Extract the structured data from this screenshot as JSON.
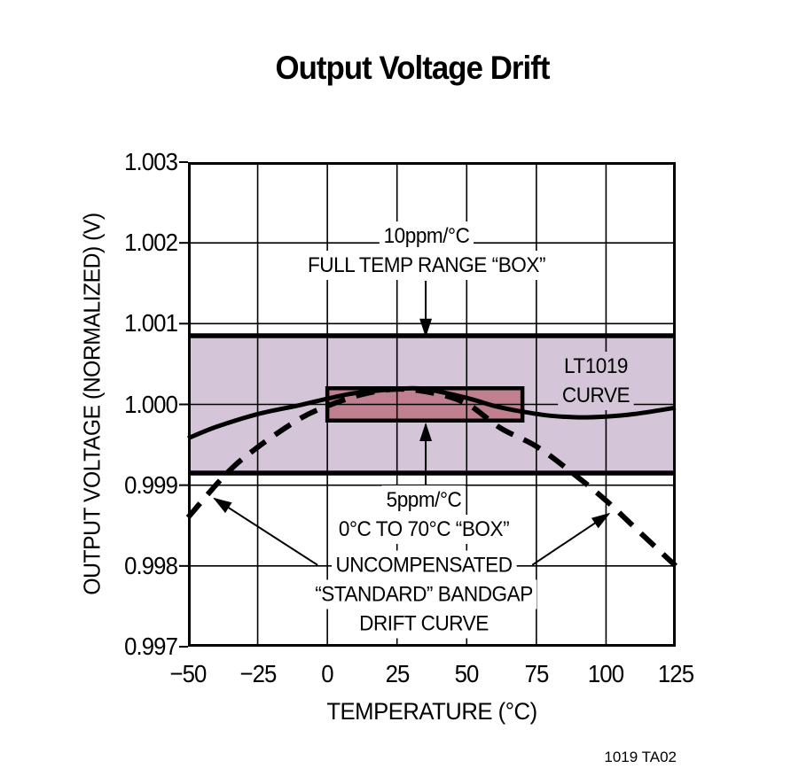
{
  "page": {
    "title": "Output Voltage Drift",
    "credit": "1019 TA02"
  },
  "chart_data": {
    "type": "line",
    "title": "Output Voltage Drift",
    "xlabel": "TEMPERATURE (°C)",
    "ylabel": "OUTPUT VOLTAGE (NORMALIZED) (V)",
    "xlim": [
      -50,
      125
    ],
    "ylim": [
      0.997,
      1.003
    ],
    "grid": true,
    "x_ticks": [
      -50,
      -25,
      0,
      25,
      50,
      75,
      100,
      125
    ],
    "x_tick_labels": [
      "−50",
      "−25",
      "0",
      "25",
      "50",
      "75",
      "100",
      "125"
    ],
    "y_ticks": [
      1.003,
      1.002,
      1.001,
      1.0,
      0.999,
      0.998,
      0.997
    ],
    "y_tick_labels": [
      "1.003",
      "1.002",
      "1.001",
      "1.000",
      "0.999",
      "0.998",
      "0.997"
    ],
    "colors": {
      "band_fill": "#d5c5d9",
      "box_fill": "#c0808f",
      "line": "#000000",
      "background": "#ffffff"
    },
    "bands": [
      {
        "name": "full-temp-range-band",
        "kind": "band",
        "x_from": -50,
        "x_to": 125,
        "y_from": 0.99915,
        "y_to": 1.00085,
        "fill": "#d5c5d9",
        "edge": "#000000",
        "edge_width": 5.5
      },
      {
        "name": "zero-to-70-box",
        "kind": "box",
        "x_from": 0,
        "x_to": 70,
        "y_from": 0.9998,
        "y_to": 1.0002,
        "fill": "#c0808f",
        "edge": "#000000",
        "edge_width": 4.5
      }
    ],
    "series": [
      {
        "name": "LT1019 CURVE",
        "style": "solid",
        "width": 5,
        "color": "#000000",
        "points": [
          [
            -50,
            0.99958
          ],
          [
            -40,
            0.99972
          ],
          [
            -25,
            0.99988
          ],
          [
            -10,
            0.99999
          ],
          [
            0,
            1.00007
          ],
          [
            10,
            1.00014
          ],
          [
            25,
            1.00019
          ],
          [
            35,
            1.00019
          ],
          [
            50,
            1.00008
          ],
          [
            60,
            0.99998
          ],
          [
            70,
            0.99991
          ],
          [
            80,
            0.99986
          ],
          [
            90,
            0.99984
          ],
          [
            100,
            0.99985
          ],
          [
            110,
            0.99988
          ],
          [
            125,
            0.99996
          ]
        ]
      },
      {
        "name": "UNCOMPENSATED “STANDARD” BANDGAP DRIFT CURVE",
        "style": "dashed",
        "width": 6,
        "dash": "21 13",
        "color": "#000000",
        "points": [
          [
            -50,
            0.9986
          ],
          [
            -36,
            0.99915
          ],
          [
            -25,
            0.99947
          ],
          [
            -10,
            0.99982
          ],
          [
            0,
            0.99998
          ],
          [
            12,
            1.00012
          ],
          [
            25,
            1.00019
          ],
          [
            38,
            1.00014
          ],
          [
            50,
            1.00001
          ],
          [
            62,
            0.99971
          ],
          [
            75,
            0.99948
          ],
          [
            88,
            0.99915
          ],
          [
            100,
            0.99881
          ],
          [
            112,
            0.99842
          ],
          [
            125,
            0.998
          ]
        ]
      }
    ],
    "annotations": [
      {
        "id": "full-temp-range-label",
        "lines": [
          "10ppm/°C",
          "FULL TEMP RANGE “BOX”"
        ],
        "x": 35.6,
        "y": 1.0019,
        "bg": "#ffffff",
        "arrows": [
          {
            "from": [
              35.3,
              1.00153
            ],
            "to": [
              35.3,
              1.000853
            ]
          }
        ]
      },
      {
        "id": "small-box-label",
        "lines": [
          "5ppm/°C",
          "0°C TO 70°C “BOX”"
        ],
        "x": 34.6,
        "y": 0.998635,
        "bg": "#ffffff",
        "arrows": [
          {
            "from": [
              35.3,
              0.998997
            ],
            "to": [
              35.3,
              0.999753
            ]
          }
        ]
      },
      {
        "id": "bandgap-curve-label",
        "lines": [
          "UNCOMPENSATED",
          "“STANDARD” BANDGAP",
          "DRIFT CURVE"
        ],
        "x": 34.6,
        "y": 0.997642,
        "bg": "#ffffff",
        "arrows": [
          {
            "from": [
              -3.5,
              0.998011
            ],
            "to": [
              -40.5,
              0.998833
            ]
          },
          {
            "from": [
              73.5,
              0.998011
            ],
            "to": [
              101,
              0.998645
            ]
          }
        ]
      },
      {
        "id": "lt1019-curve-label",
        "lines": [
          "LT1019",
          "CURVE"
        ],
        "x": 96.4,
        "y": 1.000291,
        "bg": "#d5c5d9",
        "arrows": []
      }
    ]
  }
}
